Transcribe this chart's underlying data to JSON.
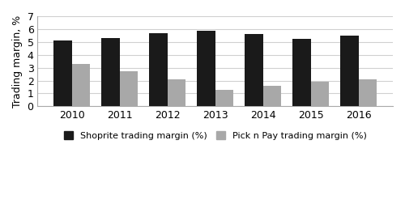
{
  "years": [
    2010,
    2011,
    2012,
    2013,
    2014,
    2015,
    2016
  ],
  "shoprite": [
    5.1,
    5.3,
    5.65,
    5.85,
    5.6,
    5.25,
    5.5
  ],
  "picknpay": [
    3.3,
    2.7,
    2.1,
    1.3,
    1.6,
    1.9,
    2.1
  ],
  "shoprite_color": "#1a1a1a",
  "picknpay_color": "#a8a8a8",
  "ylabel": "Trading margin, %",
  "ylim": [
    0,
    7
  ],
  "yticks": [
    0,
    1,
    2,
    3,
    4,
    5,
    6,
    7
  ],
  "legend_shoprite": "Shoprite trading margin (%)",
  "legend_picknpay": "Pick n Pay trading margin (%)",
  "bar_width": 0.38,
  "background_color": "#ffffff",
  "grid_color": "#d0d0d0"
}
